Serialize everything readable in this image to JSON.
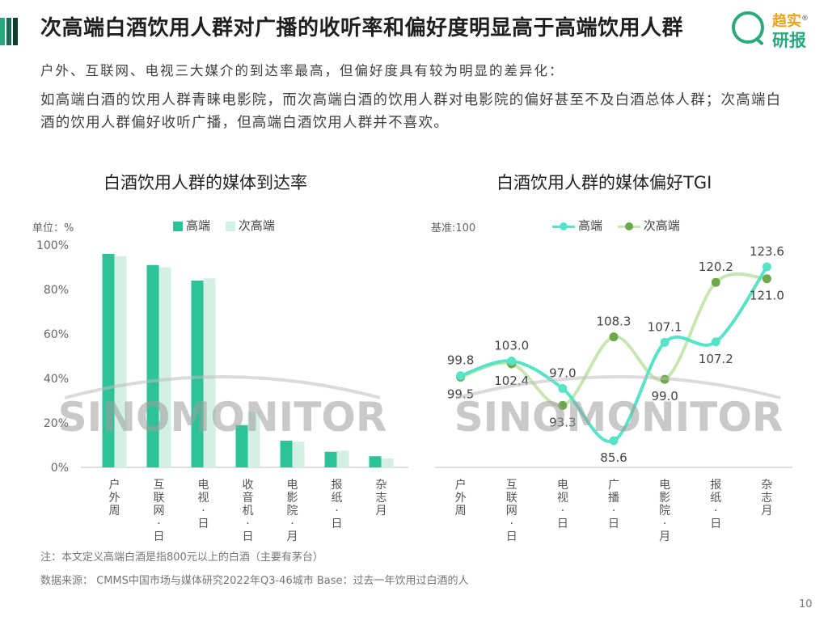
{
  "colors": {
    "high": "#2cc29a",
    "sub_high": "#d3f0e2",
    "line_high": "#56e3c8",
    "line_sub": "#6fa84a",
    "line_sub_light": "#c8e6b0",
    "accent1": "#2aa87e",
    "accent2": "#1e6b52",
    "accent3": "#0f3d30"
  },
  "header": {
    "title": "次高端白酒饮用人群对广播的收听率和偏好度明显高于高端饮用人群",
    "logo_top": "趋实",
    "logo_bottom": "研报",
    "logo_reg": "®"
  },
  "intro": {
    "line1": "户外、互联网、电视三大媒介的到达率最高，但偏好度具有较为明显的差异化：",
    "line2": "如高端白酒的饮用人群青睐电影院，而次高端白酒的饮用人群对电影院的偏好甚至不及白酒总体人群；次高端白酒的饮用人群偏好收听广播，但高端白酒饮用人群并不喜欢。"
  },
  "watermark": "SINOMONITOR",
  "chart_data": [
    {
      "type": "bar",
      "title": "白酒饮用人群的媒体到达率",
      "unit_label": "单位：%",
      "categories": [
        "户外周",
        "互联网日",
        "电视日",
        "收音机日",
        "电影院月",
        "报纸日",
        "杂志月"
      ],
      "category_lines": [
        [
          "户",
          "外",
          "周"
        ],
        [
          "互",
          "联",
          "网",
          "·",
          "日"
        ],
        [
          "电",
          "视",
          "·",
          "日"
        ],
        [
          "收",
          "音",
          "机",
          "·",
          "日"
        ],
        [
          "电",
          "影",
          "院",
          "·",
          "月"
        ],
        [
          "报",
          "纸",
          "·",
          "日"
        ],
        [
          "杂",
          "志",
          "月"
        ]
      ],
      "series": [
        {
          "name": "高端",
          "values": [
            96,
            91,
            84,
            19,
            12,
            7,
            5
          ]
        },
        {
          "name": "次高端",
          "values": [
            95,
            90,
            85,
            25,
            11.5,
            7.5,
            4
          ]
        }
      ],
      "yticks": [
        "0%",
        "20%",
        "40%",
        "60%",
        "80%",
        "100%"
      ],
      "ylim": [
        0,
        100
      ],
      "legend_position": "top"
    },
    {
      "type": "line",
      "title": "白酒饮用人群的媒体偏好TGI",
      "base_label": "基准:100",
      "categories": [
        "户外周",
        "互联网日",
        "电视日",
        "广播日",
        "电影院月",
        "报纸日",
        "杂志月"
      ],
      "category_lines": [
        [
          "户",
          "外",
          "周"
        ],
        [
          "互",
          "联",
          "网",
          "·",
          "日"
        ],
        [
          "电",
          "视",
          "·",
          "日"
        ],
        [
          "广",
          "播",
          "·",
          "日"
        ],
        [
          "电",
          "影",
          "院",
          "·",
          "月"
        ],
        [
          "报",
          "纸",
          "·",
          "日"
        ],
        [
          "杂",
          "志",
          "月"
        ]
      ],
      "series": [
        {
          "name": "高端",
          "values": [
            99.8,
            103.0,
            97.0,
            85.6,
            107.1,
            107.2,
            123.6
          ],
          "labels": [
            "99.8",
            "103.0",
            "97.0",
            "85.6",
            "107.1",
            "107.2",
            "123.6"
          ]
        },
        {
          "name": "次高端",
          "values": [
            99.5,
            102.4,
            93.3,
            108.3,
            99.0,
            120.2,
            121.0
          ],
          "labels": [
            "99.5",
            "102.4",
            "93.3",
            "108.3",
            "99.0",
            "120.2",
            "121.0"
          ]
        }
      ],
      "legend_position": "top"
    }
  ],
  "footer": {
    "note": "注：本文定义高端白酒是指800元以上的白酒（主要有茅台）",
    "source": "数据来源： CMMS中国市场与媒体研究2022年Q3-46城市 Base：过去一年饮用过白酒的人",
    "page": "10"
  }
}
